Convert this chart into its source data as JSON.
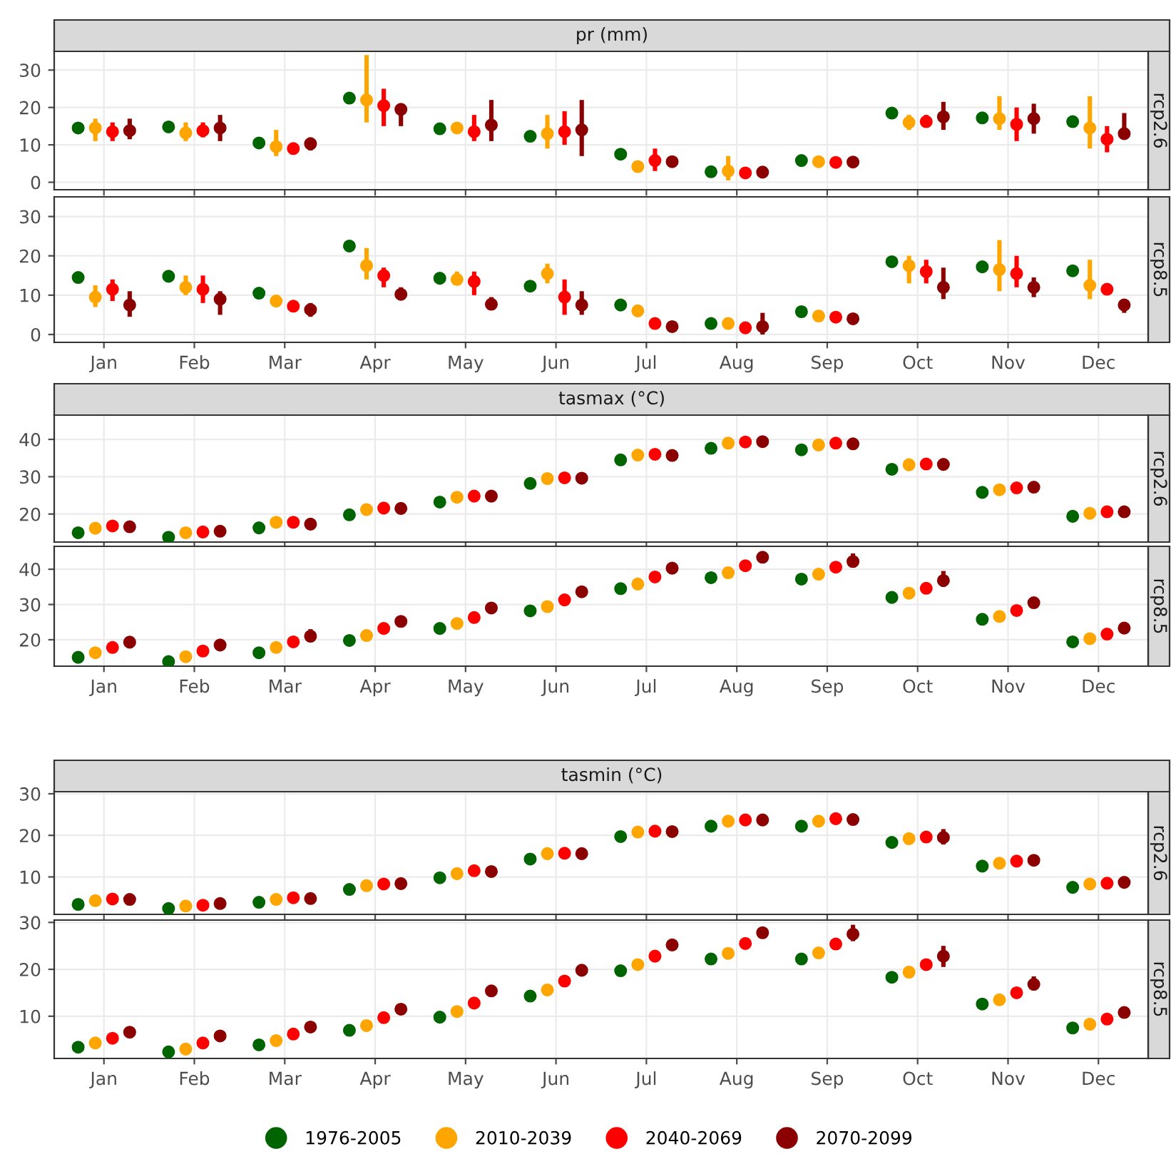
{
  "chart_data": [
    {
      "type": "scatter",
      "title": "pr (mm)",
      "subtitle": "rcp2.6",
      "categories": [
        null,
        null,
        null,
        null,
        null,
        null,
        null,
        null,
        null,
        null,
        null,
        null
      ],
      "ylim": [
        -2,
        35
      ],
      "yticks": [
        0,
        10,
        20,
        30
      ],
      "grid": true,
      "marker": "circle",
      "tick_labels": "y",
      "legend": "bottom",
      "series": [
        {
          "name": "1976-2005",
          "color": "#006400",
          "values": [
            14.5,
            14.8,
            10.5,
            22.5,
            14.3,
            12.3,
            7.5,
            2.8,
            5.8,
            18.5,
            17.2,
            16.2
          ],
          "errors": [
            null,
            null,
            null,
            [
              21,
              24
            ],
            null,
            null,
            null,
            null,
            null,
            null,
            null,
            null
          ]
        },
        {
          "name": "2010-2039",
          "color": "#ffa500",
          "values": [
            14.5,
            13.2,
            9.5,
            22,
            14.5,
            13,
            4.2,
            3,
            5.5,
            16,
            17,
            14.5
          ],
          "errors": [
            [
              11,
              17
            ],
            [
              11,
              16
            ],
            [
              7,
              14
            ],
            [
              16,
              34
            ],
            [
              13,
              16
            ],
            [
              9,
              18
            ],
            [
              3.5,
              5.5
            ],
            [
              0.5,
              7
            ],
            [
              5,
              6.5
            ],
            [
              14,
              18
            ],
            [
              14,
              23
            ],
            [
              9,
              23
            ]
          ]
        },
        {
          "name": "2040-2069",
          "color": "#ff0000",
          "values": [
            13.5,
            13.8,
            9,
            20.5,
            13.5,
            13.5,
            5.8,
            2.5,
            5.3,
            16.2,
            15.5,
            11.5
          ],
          "errors": [
            [
              11,
              16
            ],
            [
              12,
              16
            ],
            [
              7.5,
              10.5
            ],
            [
              15,
              25
            ],
            [
              11,
              18
            ],
            [
              10,
              19
            ],
            [
              3,
              9
            ],
            [
              2,
              3
            ],
            [
              4.5,
              6
            ],
            [
              15,
              18
            ],
            [
              11,
              20
            ],
            [
              8,
              15
            ]
          ]
        },
        {
          "name": "2070-2099",
          "color": "#8b0000",
          "values": [
            13.8,
            14.5,
            10.3,
            19.5,
            15.3,
            14,
            5.5,
            2.7,
            5.4,
            17.5,
            17,
            13
          ],
          "errors": [
            [
              11.5,
              17
            ],
            [
              11,
              18
            ],
            [
              8.5,
              12
            ],
            [
              15,
              21
            ],
            [
              11,
              22
            ],
            [
              7,
              22
            ],
            [
              4,
              7
            ],
            [
              2.2,
              3.2
            ],
            [
              5,
              6
            ],
            [
              14,
              21.5
            ],
            [
              13,
              21
            ],
            [
              12,
              18.5
            ]
          ]
        }
      ]
    },
    {
      "type": "scatter",
      "subtitle": "rcp8.5",
      "categories": [
        "Jan",
        "Feb",
        "Mar",
        "Apr",
        "May",
        "Jun",
        "Jul",
        "Aug",
        "Sep",
        "Oct",
        "Nov",
        "Dec"
      ],
      "ylim": [
        -2,
        35
      ],
      "yticks": [
        0,
        10,
        20,
        30
      ],
      "grid": true,
      "marker": "circle",
      "series": [
        {
          "color": "#006400",
          "values": [
            14.5,
            14.8,
            10.5,
            22.5,
            14.3,
            12.3,
            7.5,
            2.8,
            5.8,
            18.5,
            17.2,
            16.2
          ],
          "errors": [
            null,
            null,
            null,
            [
              21,
              24
            ],
            null,
            null,
            null,
            null,
            null,
            null,
            null,
            null
          ]
        },
        {
          "color": "#ffa500",
          "values": [
            9.5,
            12,
            8.5,
            17.5,
            14,
            15.5,
            6,
            2.8,
            4.7,
            17.5,
            16.5,
            12.5
          ],
          "errors": [
            [
              7,
              12.5
            ],
            [
              10,
              15
            ],
            [
              7.5,
              10
            ],
            [
              14,
              22
            ],
            [
              12.5,
              16
            ],
            [
              13,
              18
            ],
            [
              4.5,
              7.5
            ],
            [
              2,
              3.5
            ],
            [
              4,
              5.5
            ],
            [
              13,
              20
            ],
            [
              11,
              24
            ],
            [
              9,
              19
            ]
          ]
        },
        {
          "color": "#ff0000",
          "values": [
            11.5,
            11.5,
            7.2,
            15,
            13.5,
            9.5,
            2.8,
            1.7,
            4.4,
            16,
            15.5,
            11.5
          ],
          "errors": [
            [
              8.5,
              14
            ],
            [
              8,
              15
            ],
            [
              6,
              8.5
            ],
            [
              12,
              17
            ],
            [
              10,
              16
            ],
            [
              5,
              14
            ],
            [
              1.5,
              4
            ],
            [
              1,
              2.5
            ],
            [
              3.8,
              5
            ],
            [
              13,
              19
            ],
            [
              12,
              20
            ],
            [
              10,
              13
            ]
          ]
        },
        {
          "color": "#8b0000",
          "values": [
            7.5,
            9,
            6.3,
            10.2,
            7.7,
            7.5,
            2,
            2,
            4,
            12,
            12,
            7.5
          ],
          "errors": [
            [
              4.5,
              11
            ],
            [
              5,
              11
            ],
            [
              4.5,
              8
            ],
            [
              9,
              12
            ],
            [
              6.5,
              9.5
            ],
            [
              5,
              11
            ],
            [
              1,
              3
            ],
            [
              0,
              5.5
            ],
            [
              2.5,
              5
            ],
            [
              9,
              17
            ],
            [
              9.5,
              14.5
            ],
            [
              5.5,
              9
            ]
          ]
        }
      ]
    },
    {
      "type": "scatter",
      "title": "tasmax (°C)",
      "subtitle": "rcp2.6",
      "categories": [
        null,
        null,
        null,
        null,
        null,
        null,
        null,
        null,
        null,
        null,
        null,
        null
      ],
      "ylim": [
        12.5,
        46.5
      ],
      "yticks": [
        20,
        30,
        40
      ],
      "grid": true,
      "marker": "circle",
      "tick_labels": "y",
      "series": [
        {
          "color": "#006400",
          "values": [
            15,
            13.8,
            16.3,
            19.8,
            23.2,
            28.2,
            34.5,
            37.6,
            37.2,
            32,
            25.8,
            19.4
          ]
        },
        {
          "color": "#ffa500",
          "values": [
            16.2,
            15,
            17.8,
            21.2,
            24.5,
            29.5,
            35.8,
            39,
            38.5,
            33.2,
            26.5,
            20.2
          ]
        },
        {
          "color": "#ff0000",
          "values": [
            16.8,
            15.2,
            17.8,
            21.6,
            24.8,
            29.7,
            36,
            39.3,
            39,
            33.4,
            27,
            20.6
          ]
        },
        {
          "color": "#8b0000",
          "values": [
            16.6,
            15.4,
            17.3,
            21.5,
            24.8,
            29.6,
            35.7,
            39.4,
            38.8,
            33.3,
            27.2,
            20.6
          ]
        }
      ]
    },
    {
      "type": "scatter",
      "subtitle": "rcp8.5",
      "categories": [
        "Jan",
        "Feb",
        "Mar",
        "Apr",
        "May",
        "Jun",
        "Jul",
        "Aug",
        "Sep",
        "Oct",
        "Nov",
        "Dec"
      ],
      "ylim": [
        12.5,
        46.5
      ],
      "yticks": [
        20,
        30,
        40
      ],
      "grid": true,
      "marker": "circle",
      "series": [
        {
          "color": "#006400",
          "values": [
            15,
            13.8,
            16.3,
            19.8,
            23.2,
            28.2,
            34.5,
            37.6,
            37.2,
            32,
            25.8,
            19.4
          ]
        },
        {
          "color": "#ffa500",
          "values": [
            16.3,
            15.2,
            17.8,
            21.2,
            24.6,
            29.4,
            35.8,
            39,
            38.6,
            33.2,
            26.6,
            20.3
          ]
        },
        {
          "color": "#ff0000",
          "values": [
            17.8,
            16.8,
            19.4,
            23.2,
            26.3,
            31.3,
            37.8,
            41,
            40.6,
            34.6,
            28.3,
            21.6
          ]
        },
        {
          "color": "#8b0000",
          "values": [
            19.3,
            18.5,
            21,
            25.2,
            29,
            33.6,
            40.3,
            43.4,
            42.2,
            36.8,
            30.5,
            23.3
          ],
          "errors": [
            null,
            null,
            [
              19.5,
              23
            ],
            null,
            null,
            null,
            [
              39,
              42
            ],
            [
              42,
              45
            ],
            [
              40.5,
              44.5
            ],
            [
              35,
              39.5
            ],
            [
              29.5,
              32
            ],
            null
          ]
        }
      ]
    },
    {
      "type": "scatter",
      "title": "tasmin (°C)",
      "subtitle": "rcp2.6",
      "categories": [
        null,
        null,
        null,
        null,
        null,
        null,
        null,
        null,
        null,
        null,
        null,
        null
      ],
      "ylim": [
        1,
        30.5
      ],
      "yticks": [
        10,
        20,
        30
      ],
      "grid": true,
      "marker": "circle",
      "tick_labels": "y",
      "series": [
        {
          "color": "#006400",
          "values": [
            3.4,
            2.4,
            3.9,
            7,
            9.8,
            14.3,
            19.7,
            22.2,
            22.2,
            18.3,
            12.6,
            7.5
          ]
        },
        {
          "color": "#ffa500",
          "values": [
            4.3,
            3,
            4.6,
            7.9,
            10.8,
            15.6,
            20.8,
            23.4,
            23.4,
            19.2,
            13.3,
            8.3
          ]
        },
        {
          "color": "#ff0000",
          "values": [
            4.7,
            3.2,
            5,
            8.3,
            11.5,
            15.7,
            21,
            23.7,
            24,
            19.6,
            13.8,
            8.5
          ]
        },
        {
          "color": "#8b0000",
          "values": [
            4.6,
            3.6,
            4.8,
            8.4,
            11.3,
            15.6,
            20.9,
            23.7,
            23.8,
            19.5,
            14,
            8.7
          ],
          "errors": [
            null,
            null,
            null,
            null,
            null,
            null,
            null,
            null,
            null,
            [
              17.8,
              21.5
            ],
            null,
            null
          ]
        }
      ]
    },
    {
      "type": "scatter",
      "subtitle": "rcp8.5",
      "categories": [
        "Jan",
        "Feb",
        "Mar",
        "Apr",
        "May",
        "Jun",
        "Jul",
        "Aug",
        "Sep",
        "Oct",
        "Nov",
        "Dec"
      ],
      "ylim": [
        1,
        30.5
      ],
      "yticks": [
        10,
        20,
        30
      ],
      "grid": true,
      "marker": "circle",
      "series": [
        {
          "color": "#006400",
          "values": [
            3.4,
            2.4,
            3.9,
            7,
            9.8,
            14.3,
            19.7,
            22.2,
            22.2,
            18.3,
            12.6,
            7.5
          ]
        },
        {
          "color": "#ffa500",
          "values": [
            4.3,
            3,
            4.8,
            8,
            11,
            15.6,
            21,
            23.4,
            23.5,
            19.4,
            13.5,
            8.3
          ]
        },
        {
          "color": "#ff0000",
          "values": [
            5.3,
            4.3,
            6.2,
            9.7,
            12.8,
            17.5,
            22.8,
            25.5,
            25.4,
            21,
            15,
            9.4
          ]
        },
        {
          "color": "#8b0000",
          "values": [
            6.6,
            5.8,
            7.7,
            11.5,
            15.4,
            19.8,
            25.2,
            27.8,
            27.5,
            22.8,
            16.8,
            10.8
          ],
          "errors": [
            null,
            null,
            null,
            null,
            null,
            null,
            null,
            null,
            [
              26,
              29.5
            ],
            [
              20.5,
              25
            ],
            [
              15.5,
              18.5
            ],
            null
          ]
        }
      ]
    }
  ]
}
